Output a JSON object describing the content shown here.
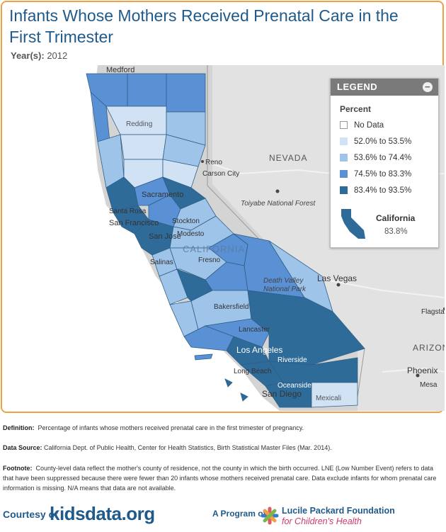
{
  "title": "Infants Whose Mothers Received Prenatal Care in the First Trimester",
  "year_label": "Year(s):",
  "year_value": "2012",
  "colors": {
    "accent_border": "#f0a040",
    "title": "#1f5a8a",
    "no_data": "#ffffff",
    "bin1": "#d0e2f4",
    "bin2": "#9fc4ea",
    "bin3": "#5a90d4",
    "bin4": "#2f6b99"
  },
  "map_labels": {
    "medford": "Medford",
    "redding": "Redding",
    "nevada": "NEVADA",
    "reno": "Reno",
    "carson_city": "Carson City",
    "toiyabe": "Toiyabe National Forest",
    "sacramento": "Sacramento",
    "santa_rosa": "Santa Rosa",
    "san_francisco": "San Francisco",
    "stockton": "Stockton",
    "modesto": "Modesto",
    "san_jose": "San Jose",
    "california": "CALIFORNIA",
    "fresno": "Fresno",
    "salinas": "Salinas",
    "death_valley_1": "Death Valley",
    "death_valley_2": "National Park",
    "las_vegas": "Las Vegas",
    "bakersfield": "Bakersfield",
    "lancaster": "Lancaster",
    "los_angeles": "Los Angeles",
    "riverside": "Riverside",
    "long_beach": "Long Beach",
    "oceanside": "Oceanside",
    "san_diego": "San Diego",
    "mexicali": "Mexicali",
    "flagstaff": "Flagstaff",
    "arizona": "ARIZON",
    "phoenix": "Phoenix",
    "mesa": "Mesa"
  },
  "legend": {
    "header": "LEGEND",
    "close_symbol": "−",
    "subtitle": "Percent",
    "items": [
      {
        "label": "No Data"
      },
      {
        "label": "52.0% to 53.5%"
      },
      {
        "label": "53.6% to 74.4%"
      },
      {
        "label": "74.5% to 83.3%"
      },
      {
        "label": "83.4% to 93.5%"
      }
    ],
    "state_name": "California",
    "state_value": "83.8%"
  },
  "notes": {
    "definition_label": "Definition:",
    "definition": "Percentage of infants whose mothers received prenatal care in the first trimester of pregnancy.",
    "source_label": "Data Source:",
    "source": "California Dept. of Public Health, Center for Health Statistics, Birth Statistical Master Files (Mar. 2014).",
    "footnote_label": "Footnote:",
    "footnote": "County-level data reflect the mother's county of residence, not the county in which the birth occurred. LNE (Low Number Event) refers to data that have been suppressed because there were fewer than 20 infants whose mothers received prenatal care. Data exclude infants for whom prenatal care information is missing. N/A means that data are not available."
  },
  "footer": {
    "courtesy": "Courtesy of",
    "kidsdata": "kidsdata.org",
    "program": "A Program of",
    "foundation_line1": "Lucile Packard Foundation",
    "foundation_line2": "for Children's Health"
  }
}
